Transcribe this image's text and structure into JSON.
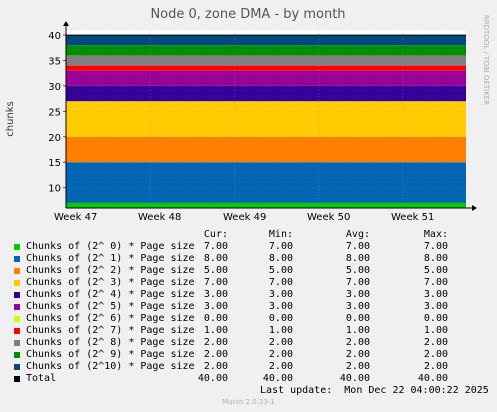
{
  "chart_data": {
    "type": "area",
    "title": "Node 0, zone DMA - by month",
    "ylabel": "chunks",
    "side_label": "RRDTOOL / TOBI OETIKER",
    "ylim": [
      6,
      41
    ],
    "y_ticks": [
      10,
      15,
      20,
      25,
      30,
      35,
      40
    ],
    "x_ticks": [
      "Week 47",
      "Week 48",
      "Week 49",
      "Week 50",
      "Week 51"
    ],
    "stacked": true,
    "legend_headers": [
      "Cur:",
      "Min:",
      "Avg:",
      "Max:"
    ],
    "series": [
      {
        "name": "Chunks of (2^ 0) * Page size",
        "color": "#00cc00",
        "cur": "7.00",
        "min": "7.00",
        "avg": "7.00",
        "max": "7.00",
        "value": 7
      },
      {
        "name": "Chunks of (2^ 1) * Page size",
        "color": "#0066b3",
        "cur": "8.00",
        "min": "8.00",
        "avg": "8.00",
        "max": "8.00",
        "value": 8
      },
      {
        "name": "Chunks of (2^ 2) * Page size",
        "color": "#ff8000",
        "cur": "5.00",
        "min": "5.00",
        "avg": "5.00",
        "max": "5.00",
        "value": 5
      },
      {
        "name": "Chunks of (2^ 3) * Page size",
        "color": "#ffcc00",
        "cur": "7.00",
        "min": "7.00",
        "avg": "7.00",
        "max": "7.00",
        "value": 7
      },
      {
        "name": "Chunks of (2^ 4) * Page size",
        "color": "#330099",
        "cur": "3.00",
        "min": "3.00",
        "avg": "3.00",
        "max": "3.00",
        "value": 3
      },
      {
        "name": "Chunks of (2^ 5) * Page size",
        "color": "#990099",
        "cur": "3.00",
        "min": "3.00",
        "avg": "3.00",
        "max": "3.00",
        "value": 3
      },
      {
        "name": "Chunks of (2^ 6) * Page size",
        "color": "#ccff00",
        "cur": "0.00",
        "min": "0.00",
        "avg": "0.00",
        "max": "0.00",
        "value": 0
      },
      {
        "name": "Chunks of (2^ 7) * Page size",
        "color": "#ff0000",
        "cur": "1.00",
        "min": "1.00",
        "avg": "1.00",
        "max": "1.00",
        "value": 1
      },
      {
        "name": "Chunks of (2^ 8) * Page size",
        "color": "#808080",
        "cur": "2.00",
        "min": "2.00",
        "avg": "2.00",
        "max": "2.00",
        "value": 2
      },
      {
        "name": "Chunks of (2^ 9) * Page size",
        "color": "#008f00",
        "cur": "2.00",
        "min": "2.00",
        "avg": "2.00",
        "max": "2.00",
        "value": 2
      },
      {
        "name": "Chunks of (2^10) * Page size",
        "color": "#00487d",
        "cur": "2.00",
        "min": "2.00",
        "avg": "2.00",
        "max": "2.00",
        "value": 2
      }
    ],
    "total": {
      "name": "Total",
      "color": "#000000",
      "cur": "40.00",
      "min": "40.00",
      "avg": "40.00",
      "max": "40.00"
    }
  },
  "last_update": "Last update:  Mon Dec 22 04:00:22 2025",
  "footer": "Munin 2.0.33-1"
}
